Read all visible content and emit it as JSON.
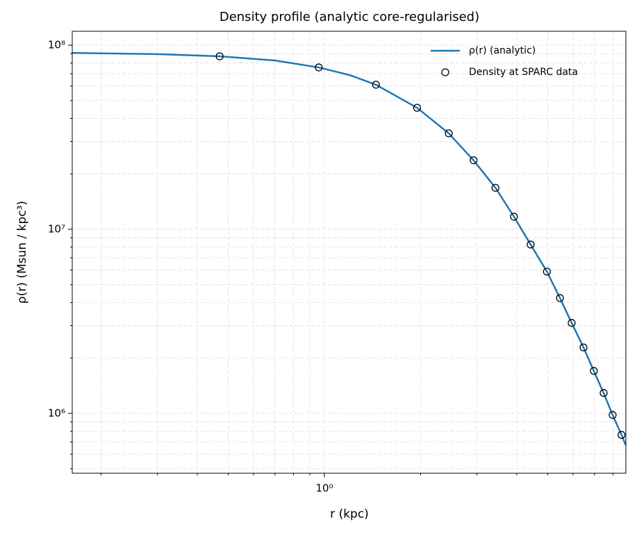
{
  "chart_data": {
    "type": "line",
    "title": "Density profile (analytic core-regularised)",
    "xlabel": "r (kpc)",
    "ylabel": "ρ(r) (Msun / kpc³)",
    "xscale": "log",
    "yscale": "log",
    "grid": true,
    "legend": "upper right",
    "xlim": [
      0.1625,
      8.78
    ],
    "ylim": [
      473000,
      119000000
    ],
    "xticks": [
      {
        "value": 1,
        "label": "10⁰"
      }
    ],
    "yticks": [
      {
        "value": 1000000,
        "label": "10⁶"
      },
      {
        "value": 10000000,
        "label": "10⁷"
      },
      {
        "value": 100000000,
        "label": "10⁸"
      }
    ],
    "xminor_ticks": [
      0.2,
      0.3,
      0.4,
      0.5,
      0.6,
      0.7,
      0.8,
      0.9,
      2,
      3,
      4,
      5,
      6,
      7,
      8
    ],
    "yminor_ticks": [
      500000,
      600000,
      700000,
      800000,
      900000,
      2000000,
      3000000,
      4000000,
      5000000,
      6000000,
      7000000,
      8000000,
      9000000,
      20000000,
      30000000,
      40000000,
      50000000,
      60000000,
      70000000,
      80000000,
      90000000
    ],
    "series": [
      {
        "name": "ρ(r) (analytic)",
        "type": "line",
        "color": "#1f77b4",
        "x": [
          0.1625,
          0.3,
          0.47,
          0.7,
          0.96,
          1.2,
          1.45,
          1.95,
          2.45,
          2.93,
          3.43,
          3.92,
          4.42,
          4.97,
          5.46,
          5.94,
          6.47,
          6.97,
          7.48,
          7.98,
          8.51,
          8.78
        ],
        "values": [
          90800000,
          89400000,
          87000000,
          82600000,
          75700000,
          68800000,
          61000000,
          45700000,
          33200000,
          23700000,
          16800000,
          11700000,
          8260000,
          5890000,
          4230000,
          3100000,
          2280000,
          1700000,
          1290000,
          980000,
          764000,
          670000
        ]
      },
      {
        "name": "Density at SPARC data",
        "type": "scatter",
        "color": "#000000",
        "x": [
          0.47,
          0.96,
          1.45,
          1.95,
          2.45,
          2.93,
          3.43,
          3.92,
          4.42,
          4.97,
          5.46,
          5.94,
          6.47,
          6.97,
          7.48,
          7.98,
          8.51
        ],
        "values": [
          87000000,
          75700000,
          61000000,
          45700000,
          33200000,
          23700000,
          16800000,
          11700000,
          8260000,
          5890000,
          4230000,
          3100000,
          2280000,
          1700000,
          1290000,
          980000,
          764000
        ]
      }
    ]
  }
}
